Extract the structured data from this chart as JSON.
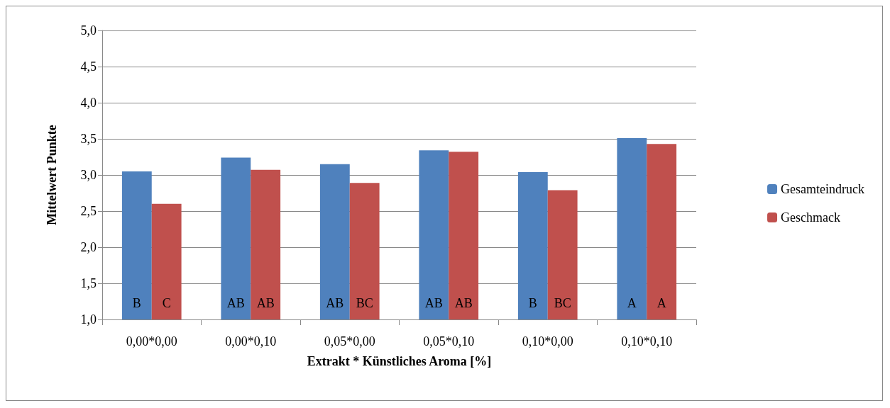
{
  "chart_data": {
    "type": "bar",
    "xlabel": "Extrakt * Künstliches Aroma [%]",
    "ylabel": "Mittelwert Punkte",
    "categories": [
      "0,00*0,00",
      "0,00*0,10",
      "0,05*0,00",
      "0,05*0,10",
      "0,10*0,00",
      "0,10*0,10"
    ],
    "series": [
      {
        "name": "Gesamteindruck",
        "color": "#4f81bd",
        "values": [
          3.05,
          3.24,
          3.15,
          3.34,
          3.04,
          3.51
        ],
        "value_labels": [
          "B",
          "AB",
          "AB",
          "AB",
          "B",
          "A"
        ]
      },
      {
        "name": "Geschmack",
        "color": "#c0504d",
        "values": [
          2.6,
          3.07,
          2.89,
          3.32,
          2.79,
          3.43
        ],
        "value_labels": [
          "C",
          "AB",
          "BC",
          "AB",
          "BC",
          "A"
        ]
      }
    ],
    "ylim": [
      1,
      5
    ],
    "yticks": [
      {
        "value": 1,
        "label": "1,0"
      },
      {
        "value": 1.5,
        "label": "1,5"
      },
      {
        "value": 2,
        "label": "2,0"
      },
      {
        "value": 2.5,
        "label": "2,5"
      },
      {
        "value": 3,
        "label": "3,0"
      },
      {
        "value": 3.5,
        "label": "3,5"
      },
      {
        "value": 4,
        "label": "4,0"
      },
      {
        "value": 4.5,
        "label": "4,5"
      },
      {
        "value": 5,
        "label": "5,0"
      }
    ],
    "grid": "y",
    "legend": "right"
  }
}
